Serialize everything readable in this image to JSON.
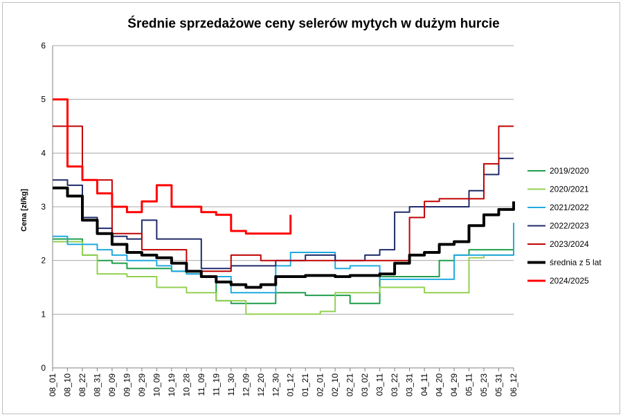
{
  "chart_data": {
    "type": "line",
    "title": "Średnie sprzedażowe ceny selerów mytych w dużym hurcie",
    "ylabel": "Cena [zł/kg]",
    "xlabel": "",
    "ylim": [
      0,
      6
    ],
    "yticks": [
      "0",
      "1",
      "2",
      "3",
      "4",
      "5",
      "6"
    ],
    "grid": true,
    "legend_position": "right",
    "x": [
      "08_01",
      "08_10",
      "08_22",
      "08_31",
      "09_09",
      "09_19",
      "09_29",
      "10_09",
      "10_19",
      "10_28",
      "11_09",
      "11_19",
      "11_30",
      "12_09",
      "12_20",
      "12_30",
      "01_12",
      "01_21",
      "02_01",
      "02_10",
      "02_21",
      "03_02",
      "03_11",
      "03_22",
      "03_31",
      "04_11",
      "04_20",
      "04_29",
      "05_11",
      "05_23",
      "05_31",
      "06_12"
    ],
    "series": [
      {
        "name": "2019/2020",
        "color": "#1e9e4a",
        "width": 2,
        "values": [
          2.4,
          2.4,
          2.1,
          2.0,
          1.95,
          1.85,
          1.85,
          1.85,
          1.8,
          1.75,
          1.7,
          1.25,
          1.2,
          1.2,
          1.2,
          1.4,
          1.4,
          1.35,
          1.35,
          1.35,
          1.2,
          1.2,
          1.7,
          1.7,
          1.7,
          1.7,
          2.0,
          2.1,
          2.2,
          2.2,
          2.2,
          2.2
        ]
      },
      {
        "name": "2020/2021",
        "color": "#92d050",
        "width": 2,
        "values": [
          2.35,
          2.35,
          2.1,
          1.75,
          1.75,
          1.7,
          1.7,
          1.5,
          1.5,
          1.4,
          1.4,
          1.25,
          1.25,
          1.0,
          1.0,
          1.0,
          1.0,
          1.0,
          1.05,
          1.4,
          1.4,
          1.4,
          1.5,
          1.5,
          1.5,
          1.4,
          1.4,
          1.4,
          2.05,
          2.1,
          2.1,
          2.1
        ]
      },
      {
        "name": "2021/2022",
        "color": "#1fa9e0",
        "width": 2,
        "values": [
          2.45,
          2.3,
          2.3,
          2.2,
          2.1,
          2.0,
          2.0,
          1.9,
          1.8,
          1.75,
          1.7,
          1.7,
          1.4,
          1.4,
          1.4,
          1.9,
          2.15,
          2.15,
          2.15,
          1.85,
          1.9,
          1.9,
          1.65,
          1.65,
          1.65,
          1.65,
          1.65,
          2.1,
          2.1,
          2.1,
          2.1,
          2.7
        ]
      },
      {
        "name": "2022/2023",
        "color": "#1f2a6a",
        "width": 2,
        "values": [
          3.5,
          3.4,
          2.8,
          2.6,
          2.45,
          2.4,
          2.75,
          2.4,
          2.4,
          2.4,
          1.85,
          1.85,
          1.9,
          1.9,
          1.9,
          2.0,
          2.0,
          2.1,
          2.1,
          2.0,
          2.0,
          2.1,
          2.2,
          2.9,
          3.0,
          3.0,
          3.0,
          3.0,
          3.3,
          3.6,
          3.9,
          3.9
        ]
      },
      {
        "name": "2023/2024",
        "color": "#c00000",
        "width": 2,
        "values": [
          4.5,
          4.5,
          3.5,
          3.5,
          2.5,
          2.5,
          2.2,
          2.2,
          2.2,
          1.8,
          1.8,
          1.8,
          2.1,
          2.1,
          2.0,
          2.0,
          2.0,
          2.0,
          2.0,
          2.0,
          2.0,
          2.0,
          2.0,
          2.0,
          2.8,
          3.1,
          3.15,
          3.15,
          3.15,
          3.8,
          4.5,
          4.5
        ]
      },
      {
        "name": "średnia z 5 lat",
        "color": "#000000",
        "width": 4,
        "values": [
          3.35,
          3.2,
          2.75,
          2.5,
          2.3,
          2.15,
          2.1,
          2.05,
          1.95,
          1.8,
          1.7,
          1.6,
          1.55,
          1.5,
          1.55,
          1.7,
          1.7,
          1.72,
          1.72,
          1.7,
          1.72,
          1.72,
          1.75,
          1.95,
          2.1,
          2.15,
          2.3,
          2.35,
          2.65,
          2.85,
          2.95,
          3.1
        ]
      },
      {
        "name": "2024/2025",
        "color": "#ff0000",
        "width": 3,
        "values": [
          5.0,
          3.75,
          3.5,
          3.25,
          3.0,
          2.9,
          3.1,
          3.4,
          3.0,
          3.0,
          2.9,
          2.85,
          2.55,
          2.5,
          2.5,
          2.5,
          2.85,
          null,
          null,
          null,
          null,
          null,
          null,
          null,
          null,
          null,
          null,
          null,
          null,
          null,
          null,
          null
        ]
      }
    ]
  }
}
